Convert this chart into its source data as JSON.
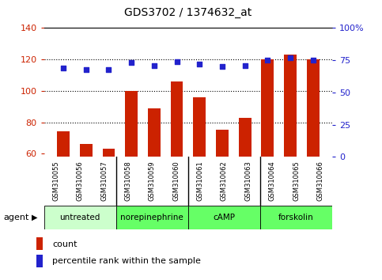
{
  "title": "GDS3702 / 1374632_at",
  "samples": [
    "GSM310055",
    "GSM310056",
    "GSM310057",
    "GSM310058",
    "GSM310059",
    "GSM310060",
    "GSM310061",
    "GSM310062",
    "GSM310063",
    "GSM310064",
    "GSM310065",
    "GSM310066"
  ],
  "counts": [
    74,
    66,
    63,
    100,
    89,
    106,
    96,
    75,
    83,
    120,
    123,
    120
  ],
  "percentile": [
    69,
    68,
    68,
    73,
    71,
    74,
    72,
    70,
    71,
    75,
    77,
    75
  ],
  "ylim_left": [
    58,
    140
  ],
  "ylim_right": [
    0,
    100
  ],
  "yticks_left": [
    60,
    80,
    100,
    120,
    140
  ],
  "yticks_right": [
    0,
    25,
    50,
    75,
    100
  ],
  "bar_color": "#CC2200",
  "dot_color": "#2222CC",
  "grid_lines": [
    80,
    100,
    120
  ],
  "groups": [
    {
      "label": "untreated",
      "start": 0,
      "end": 3,
      "color": "#CCFFCC"
    },
    {
      "label": "norepinephrine",
      "start": 3,
      "end": 6,
      "color": "#66FF66"
    },
    {
      "label": "cAMP",
      "start": 6,
      "end": 9,
      "color": "#66FF66"
    },
    {
      "label": "forskolin",
      "start": 9,
      "end": 12,
      "color": "#66FF66"
    }
  ],
  "legend_count_label": "count",
  "legend_pct_label": "percentile rank within the sample",
  "agent_label": "agent"
}
